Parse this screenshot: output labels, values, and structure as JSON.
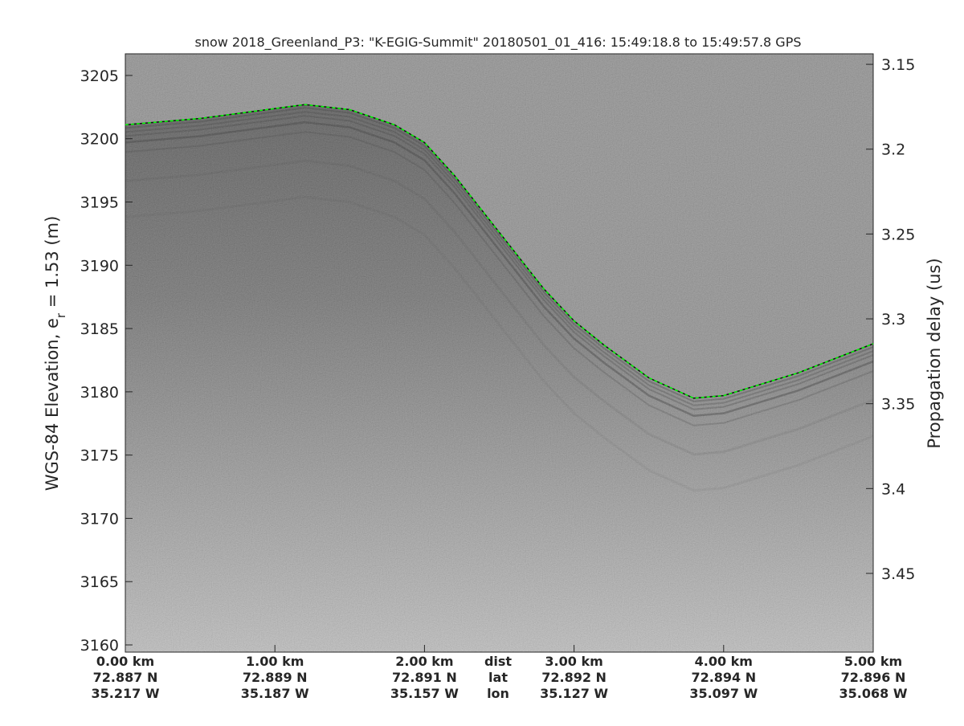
{
  "chart_data": {
    "type": "echogram",
    "title": "snow 2018_Greenland_P3: \"K-EGIG-Summit\"  20180501_01_416: 15:49:18.8 to 15:49:57.8 GPS",
    "ylabel": [
      "WGS-84 Elevation, e",
      "r",
      " = 1.53 (m)"
    ],
    "y2label": "Propagation delay (us)",
    "xlim": [
      0,
      5
    ],
    "xticks": [
      {
        "value": 0,
        "label": "0.00 km"
      },
      {
        "value": 1,
        "label": "1.00 km"
      },
      {
        "value": 2,
        "label": "2.00 km"
      },
      {
        "value": 3,
        "label": "3.00 km"
      },
      {
        "value": 4,
        "label": "4.00 km"
      },
      {
        "value": 5,
        "label": "5.00 km"
      }
    ],
    "row_labels": [
      "dist",
      "lat",
      "lon"
    ],
    "lat_labels": [
      "72.887 N",
      "72.889 N",
      "72.891 N",
      "72.892 N",
      "72.894 N",
      "72.896 N"
    ],
    "lon_labels": [
      "35.217 W",
      "35.187 W",
      "35.157 W",
      "35.127 W",
      "35.097 W",
      "35.068 W"
    ],
    "ylim": [
      3159.43,
      3206.71
    ],
    "yticks": [
      3160,
      3165,
      3170,
      3175,
      3180,
      3185,
      3190,
      3195,
      3200,
      3205
    ],
    "y2lim": [
      3.4964,
      3.1438
    ],
    "y2ticks": [
      3.15,
      3.2,
      3.25,
      3.3,
      3.35,
      3.4,
      3.45
    ],
    "surface": {
      "color": "#00ff00",
      "x": [
        0,
        0.5,
        1.2,
        1.5,
        1.8,
        2.0,
        2.2,
        2.5,
        2.8,
        3.0,
        3.2,
        3.5,
        3.8,
        4.0,
        4.5,
        5.0
      ],
      "values": [
        3201.1,
        3201.6,
        3202.7,
        3202.3,
        3201.1,
        3199.7,
        3197.1,
        3192.6,
        3188.1,
        3185.6,
        3183.7,
        3181.1,
        3179.5,
        3179.7,
        3181.5,
        3183.8
      ]
    }
  }
}
